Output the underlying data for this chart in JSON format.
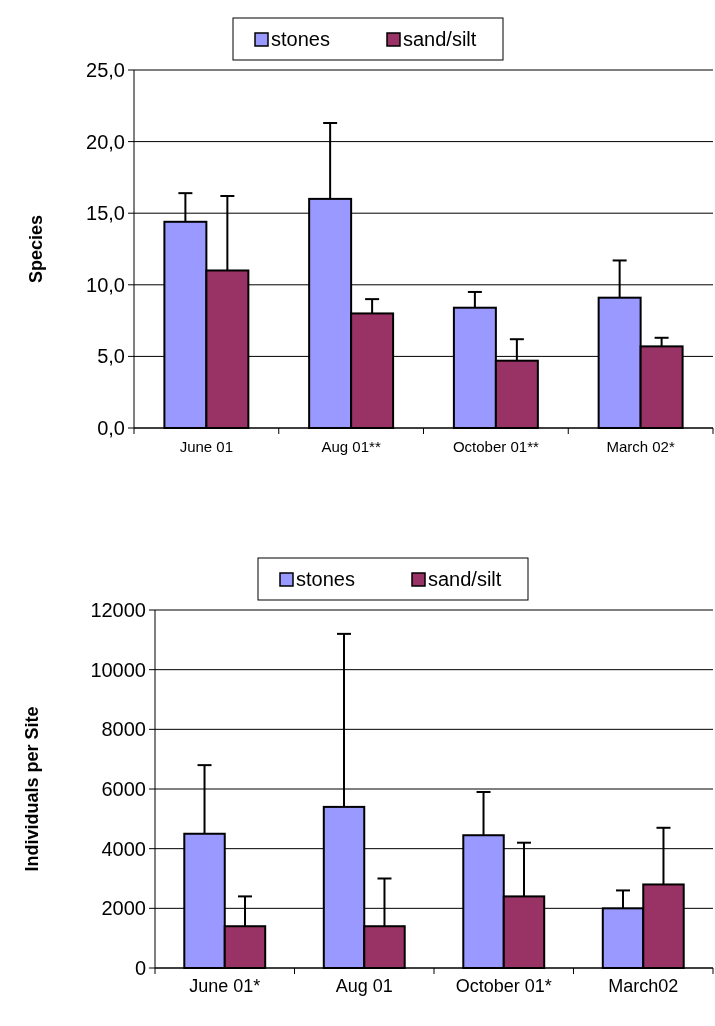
{
  "chart_data": [
    {
      "type": "bar",
      "ylabel": "Species",
      "categories": [
        "June 01",
        "Aug 01**",
        "October 01**",
        "March 02*"
      ],
      "series": [
        {
          "name": "stones",
          "color": "#9999ff",
          "values": [
            14.4,
            16.0,
            8.4,
            9.1
          ],
          "errors": [
            [
              14.4,
              16.4
            ],
            [
              16.0,
              21.3
            ],
            [
              8.4,
              9.5
            ],
            [
              9.1,
              11.7
            ]
          ]
        },
        {
          "name": "sand/silt",
          "color": "#993366",
          "values": [
            11.0,
            8.0,
            4.7,
            5.7
          ],
          "errors": [
            [
              11.0,
              16.2
            ],
            [
              8.0,
              9.0
            ],
            [
              4.7,
              6.2
            ],
            [
              5.7,
              6.3
            ]
          ]
        }
      ],
      "ylim": [
        0,
        25
      ],
      "yticks": [
        {
          "value": 0,
          "label": "0,0"
        },
        {
          "value": 5,
          "label": "5,0"
        },
        {
          "value": 10,
          "label": "10,0"
        },
        {
          "value": 15,
          "label": "15,0"
        },
        {
          "value": 20,
          "label": "20,0"
        },
        {
          "value": 25,
          "label": "25,0"
        }
      ],
      "grid": "y",
      "legend": "top"
    },
    {
      "type": "bar",
      "ylabel": "Individuals per Site",
      "categories": [
        "June 01*",
        "Aug 01",
        "October 01*",
        "March02"
      ],
      "series": [
        {
          "name": "stones",
          "color": "#9999ff",
          "values": [
            4500,
            5400,
            4450,
            2000
          ],
          "errors": [
            [
              4500,
              6800
            ],
            [
              5400,
              11200
            ],
            [
              4450,
              5900
            ],
            [
              2000,
              2600
            ]
          ]
        },
        {
          "name": "sand/silt",
          "color": "#993366",
          "values": [
            1400,
            1400,
            2400,
            2800
          ],
          "errors": [
            [
              1400,
              2400
            ],
            [
              1400,
              3000
            ],
            [
              2400,
              4200
            ],
            [
              2800,
              4700
            ]
          ]
        }
      ],
      "ylim": [
        0,
        12000
      ],
      "yticks": [
        0,
        2000,
        4000,
        6000,
        8000,
        10000,
        12000
      ],
      "grid": "y",
      "legend": "top"
    }
  ]
}
